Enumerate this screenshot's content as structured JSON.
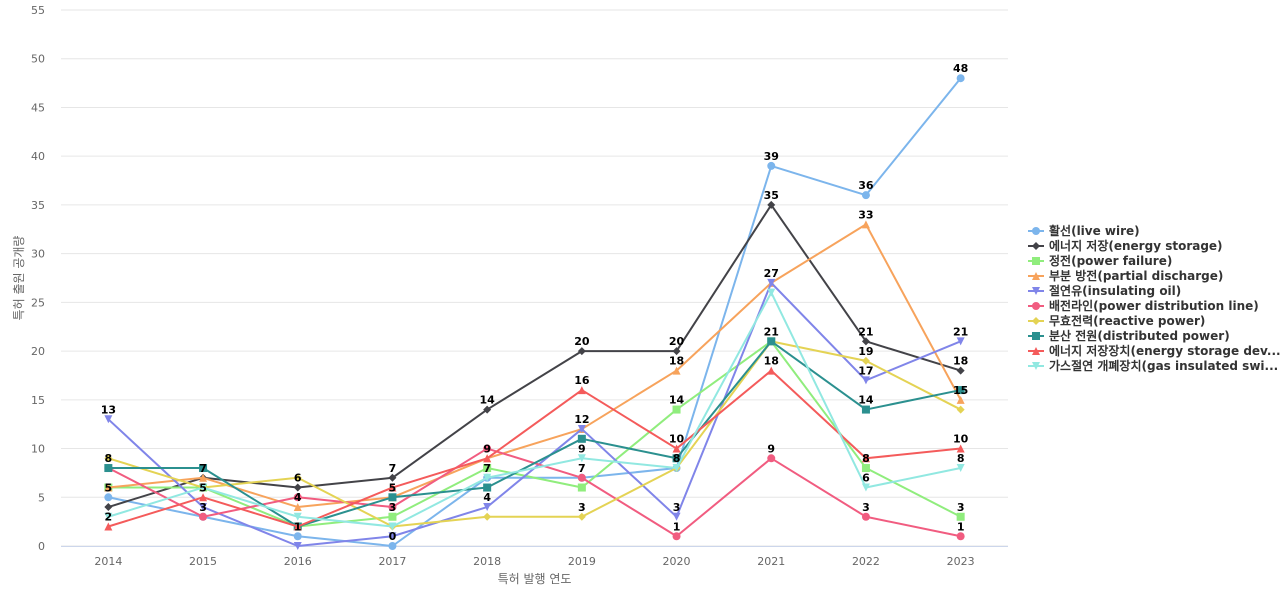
{
  "chart_data": {
    "type": "line",
    "title": "",
    "xlabel": "특허 발행 연도",
    "ylabel": "특허 출원 공개량",
    "categories": [
      "2014",
      "2015",
      "2016",
      "2017",
      "2018",
      "2019",
      "2020",
      "2021",
      "2022",
      "2023"
    ],
    "ylim": [
      0,
      55
    ],
    "yticks": [
      0,
      5,
      10,
      15,
      20,
      25,
      30,
      35,
      40,
      45,
      50,
      55
    ],
    "grid": true,
    "legend_position": "right",
    "series": [
      {
        "name": "활선(live wire)",
        "color": "#7cb5ec",
        "marker": "circle",
        "values": [
          5,
          3,
          1,
          0,
          7,
          7,
          8,
          39,
          36,
          48
        ]
      },
      {
        "name": "에너지 저장(energy storage)",
        "color": "#434348",
        "marker": "diamond",
        "values": [
          4,
          7,
          6,
          7,
          14,
          20,
          20,
          35,
          21,
          18
        ]
      },
      {
        "name": "정전(power failure)",
        "color": "#90ed7d",
        "marker": "square",
        "values": [
          6,
          6,
          2,
          3,
          8,
          6,
          14,
          21,
          8,
          3
        ]
      },
      {
        "name": "부분 방전(partial discharge)",
        "color": "#f7a35c",
        "marker": "triangle",
        "values": [
          6,
          7,
          4,
          5,
          9,
          12,
          18,
          27,
          33,
          15
        ]
      },
      {
        "name": "절연유(insulating oil)",
        "color": "#8085e9",
        "marker": "triangle-down",
        "values": [
          13,
          4,
          0,
          1,
          4,
          12,
          3,
          27,
          17,
          21
        ]
      },
      {
        "name": "배전라인(power distribution line)",
        "color": "#f15c80",
        "marker": "circle",
        "values": [
          8,
          3,
          5,
          4,
          10,
          7,
          1,
          9,
          3,
          1
        ]
      },
      {
        "name": "무효전력(reactive power)",
        "color": "#e4d354",
        "marker": "diamond",
        "values": [
          9,
          6,
          7,
          2,
          3,
          3,
          8,
          21,
          19,
          14
        ]
      },
      {
        "name": "분산 전원(distributed power)",
        "color": "#2b908f",
        "marker": "square",
        "values": [
          8,
          8,
          2,
          5,
          6,
          11,
          9,
          21,
          14,
          16
        ]
      },
      {
        "name": "에너지 저장장치(energy storage dev...",
        "color": "#f45b5b",
        "marker": "triangle",
        "values": [
          2,
          5,
          2,
          6,
          9,
          16,
          10,
          18,
          9,
          10
        ]
      },
      {
        "name": "가스절연 개폐장치(gas insulated swi...",
        "color": "#91e8e1",
        "marker": "triangle-down",
        "values": [
          3,
          6,
          3,
          2,
          7,
          9,
          8,
          26,
          6,
          8
        ]
      }
    ],
    "data_labels": [
      {
        "x": "2014",
        "y": 13,
        "text": "13"
      },
      {
        "x": "2014",
        "y": 8,
        "text": "8"
      },
      {
        "x": "2014",
        "y": 5,
        "text": "5"
      },
      {
        "x": "2014",
        "y": 2,
        "text": "2"
      },
      {
        "x": "2015",
        "y": 7,
        "text": "7"
      },
      {
        "x": "2015",
        "y": 5,
        "text": "5"
      },
      {
        "x": "2015",
        "y": 3,
        "text": "3"
      },
      {
        "x": "2016",
        "y": 6,
        "text": "6"
      },
      {
        "x": "2016",
        "y": 4,
        "text": "4"
      },
      {
        "x": "2016",
        "y": 1,
        "text": "1"
      },
      {
        "x": "2017",
        "y": 7,
        "text": "7"
      },
      {
        "x": "2017",
        "y": 5,
        "text": "5"
      },
      {
        "x": "2017",
        "y": 3,
        "text": "3"
      },
      {
        "x": "2017",
        "y": 0,
        "text": "0"
      },
      {
        "x": "2018",
        "y": 14,
        "text": "14"
      },
      {
        "x": "2018",
        "y": 9,
        "text": "9"
      },
      {
        "x": "2018",
        "y": 7,
        "text": "7"
      },
      {
        "x": "2018",
        "y": 4,
        "text": "4"
      },
      {
        "x": "2019",
        "y": 20,
        "text": "20"
      },
      {
        "x": "2019",
        "y": 16,
        "text": "16"
      },
      {
        "x": "2019",
        "y": 12,
        "text": "12"
      },
      {
        "x": "2019",
        "y": 9,
        "text": "9"
      },
      {
        "x": "2019",
        "y": 7,
        "text": "7"
      },
      {
        "x": "2019",
        "y": 3,
        "text": "3"
      },
      {
        "x": "2020",
        "y": 20,
        "text": "20"
      },
      {
        "x": "2020",
        "y": 18,
        "text": "18"
      },
      {
        "x": "2020",
        "y": 14,
        "text": "14"
      },
      {
        "x": "2020",
        "y": 10,
        "text": "10"
      },
      {
        "x": "2020",
        "y": 8,
        "text": "8"
      },
      {
        "x": "2020",
        "y": 3,
        "text": "3"
      },
      {
        "x": "2020",
        "y": 1,
        "text": "1"
      },
      {
        "x": "2021",
        "y": 39,
        "text": "39"
      },
      {
        "x": "2021",
        "y": 35,
        "text": "35"
      },
      {
        "x": "2021",
        "y": 27,
        "text": "27"
      },
      {
        "x": "2021",
        "y": 21,
        "text": "21"
      },
      {
        "x": "2021",
        "y": 18,
        "text": "18"
      },
      {
        "x": "2021",
        "y": 9,
        "text": "9"
      },
      {
        "x": "2022",
        "y": 36,
        "text": "36"
      },
      {
        "x": "2022",
        "y": 33,
        "text": "33"
      },
      {
        "x": "2022",
        "y": 21,
        "text": "21"
      },
      {
        "x": "2022",
        "y": 19,
        "text": "19"
      },
      {
        "x": "2022",
        "y": 17,
        "text": "17"
      },
      {
        "x": "2022",
        "y": 14,
        "text": "14"
      },
      {
        "x": "2022",
        "y": 8,
        "text": "8"
      },
      {
        "x": "2022",
        "y": 6,
        "text": "6"
      },
      {
        "x": "2022",
        "y": 3,
        "text": "3"
      },
      {
        "x": "2023",
        "y": 48,
        "text": "48"
      },
      {
        "x": "2023",
        "y": 21,
        "text": "21"
      },
      {
        "x": "2023",
        "y": 18,
        "text": "18"
      },
      {
        "x": "2023",
        "y": 15,
        "text": "15"
      },
      {
        "x": "2023",
        "y": 10,
        "text": "10"
      },
      {
        "x": "2023",
        "y": 8,
        "text": "8"
      },
      {
        "x": "2023",
        "y": 3,
        "text": "3"
      },
      {
        "x": "2023",
        "y": 1,
        "text": "1"
      }
    ]
  }
}
